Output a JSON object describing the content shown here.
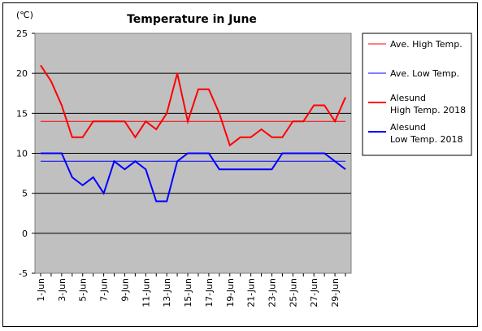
{
  "chart_data": {
    "type": "line",
    "title": "Temperature in June",
    "unit_label": "(℃)",
    "ylim": [
      -5,
      25
    ],
    "y_ticks": [
      25,
      20,
      15,
      10,
      5,
      0,
      -5
    ],
    "x_tick_labels": [
      "1-Jun",
      "3-Jun",
      "5-Jun",
      "7-Jun",
      "9-Jun",
      "11-Jun",
      "13-Jun",
      "15-Jun",
      "17-Jun",
      "19-Jun",
      "21-Jun",
      "23-Jun",
      "25-Jun",
      "27-Jun",
      "29-Jun"
    ],
    "days": 30,
    "grid": true,
    "legend_position": "right",
    "series": [
      {
        "name": "Ave. High Temp.",
        "color": "#ff0000",
        "width": 1,
        "values": [
          14,
          14,
          14,
          14,
          14,
          14,
          14,
          14,
          14,
          14,
          14,
          14,
          14,
          14,
          14,
          14,
          14,
          14,
          14,
          14,
          14,
          14,
          14,
          14,
          14,
          14,
          14,
          14,
          14,
          14
        ]
      },
      {
        "name": "Ave. Low Temp.",
        "color": "#0000ff",
        "width": 1,
        "values": [
          9,
          9,
          9,
          9,
          9,
          9,
          9,
          9,
          9,
          9,
          9,
          9,
          9,
          9,
          9,
          9,
          9,
          9,
          9,
          9,
          9,
          9,
          9,
          9,
          9,
          9,
          9,
          9,
          9,
          9
        ]
      },
      {
        "name": "Alesund High Temp. 2018",
        "legend_lines": [
          "Alesund",
          "High Temp. 2018"
        ],
        "color": "#ff0000",
        "width": 2,
        "values": [
          21,
          19,
          16,
          12,
          12,
          14,
          14,
          14,
          14,
          12,
          14,
          13,
          15,
          20,
          14,
          18,
          18,
          15,
          11,
          12,
          12,
          13,
          12,
          12,
          14,
          14,
          16,
          16,
          14,
          17
        ]
      },
      {
        "name": "Alesund Low Temp. 2018",
        "legend_lines": [
          "Alesund",
          "Low Temp. 2018"
        ],
        "color": "#0000ff",
        "width": 2,
        "values": [
          10,
          10,
          10,
          7,
          6,
          7,
          5,
          9,
          8,
          9,
          8,
          4,
          4,
          9,
          10,
          10,
          10,
          8,
          8,
          8,
          8,
          8,
          8,
          10,
          10,
          10,
          10,
          10,
          9,
          8
        ]
      }
    ]
  }
}
